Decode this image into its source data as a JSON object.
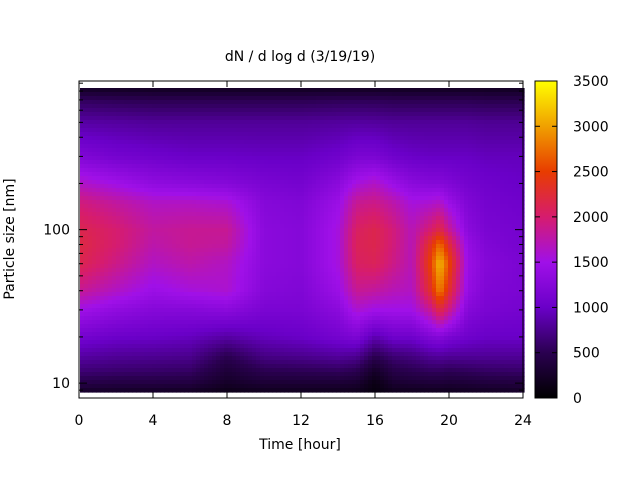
{
  "chart_data": {
    "type": "heatmap",
    "title": "dN / d log d (3/19/19)",
    "xlabel": "Time [hour]",
    "ylabel": "Particle size [nm]",
    "xlim": [
      0,
      24
    ],
    "ylim_nm": [
      8,
      930
    ],
    "y_scale": "log",
    "x_ticks": [
      0,
      4,
      8,
      12,
      16,
      20,
      24
    ],
    "x_tick_labels": [
      "0",
      "4",
      "8",
      "12",
      "16",
      "20",
      "24"
    ],
    "y_ticks": [
      10,
      100
    ],
    "y_tick_labels": [
      "10",
      "100"
    ],
    "colorbar": {
      "range": [
        0,
        3500
      ],
      "ticks": [
        0,
        500,
        1000,
        1500,
        2000,
        2500,
        3000,
        3500
      ],
      "tick_labels": [
        "0",
        "500",
        "1000",
        "1500",
        "2000",
        "2500",
        "3000",
        "3500"
      ],
      "colormap": "black-purple-red-orange-yellow"
    },
    "colormap_stops": [
      "#000000",
      "#2a0050",
      "#6a00c8",
      "#a010e8",
      "#d61c6e",
      "#e83c00",
      "#f0a000",
      "#ffff00"
    ],
    "time_hour": [
      0,
      2,
      4,
      6,
      8,
      10,
      12,
      14,
      15,
      16,
      17,
      18,
      19,
      19.5,
      20,
      21,
      22,
      24
    ],
    "size_nm": [
      8.5,
      10,
      12,
      15,
      20,
      30,
      40,
      60,
      80,
      100,
      150,
      200,
      300,
      500,
      700,
      900
    ],
    "values": [
      [
        200,
        200,
        180,
        180,
        120,
        150,
        150,
        150,
        150,
        80,
        150,
        150,
        150,
        150,
        150,
        180,
        180,
        200
      ],
      [
        450,
        420,
        420,
        400,
        250,
        330,
        330,
        330,
        300,
        120,
        300,
        330,
        350,
        350,
        330,
        350,
        380,
        400
      ],
      [
        650,
        620,
        600,
        580,
        350,
        500,
        520,
        550,
        500,
        250,
        450,
        500,
        550,
        550,
        520,
        550,
        580,
        600
      ],
      [
        850,
        800,
        780,
        760,
        500,
        720,
        760,
        820,
        780,
        500,
        650,
        700,
        800,
        820,
        800,
        800,
        800,
        800
      ],
      [
        1100,
        1020,
        1000,
        960,
        850,
        950,
        1000,
        1100,
        1180,
        900,
        1050,
        1050,
        1200,
        1250,
        1150,
        1050,
        1000,
        1000
      ],
      [
        1500,
        1350,
        1250,
        1250,
        1300,
        1150,
        1150,
        1300,
        1600,
        1500,
        1500,
        1500,
        1850,
        2200,
        1900,
        1250,
        1150,
        1100
      ],
      [
        1850,
        1650,
        1450,
        1550,
        1600,
        1250,
        1200,
        1450,
        1850,
        1800,
        1700,
        1650,
        2300,
        2850,
        2300,
        1400,
        1200,
        1150
      ],
      [
        2150,
        1900,
        1650,
        1750,
        1650,
        1300,
        1250,
        1550,
        2050,
        2100,
        1900,
        1700,
        2500,
        3150,
        2550,
        1450,
        1250,
        1150
      ],
      [
        2200,
        2000,
        1750,
        1850,
        1800,
        1300,
        1250,
        1550,
        2100,
        2150,
        1950,
        1700,
        2350,
        2750,
        2250,
        1400,
        1200,
        1100
      ],
      [
        2150,
        2000,
        1800,
        1850,
        1850,
        1300,
        1250,
        1550,
        2050,
        2150,
        1950,
        1700,
        2000,
        2200,
        1850,
        1300,
        1150,
        1100
      ],
      [
        1950,
        1800,
        1650,
        1650,
        1600,
        1250,
        1200,
        1450,
        1850,
        1900,
        1750,
        1550,
        1600,
        1650,
        1450,
        1200,
        1100,
        1050
      ],
      [
        1650,
        1500,
        1350,
        1300,
        1250,
        1150,
        1100,
        1300,
        1550,
        1650,
        1450,
        1300,
        1250,
        1250,
        1200,
        1100,
        1050,
        1000
      ],
      [
        1200,
        1100,
        1050,
        1000,
        1000,
        980,
        980,
        1050,
        1150,
        1150,
        1050,
        1000,
        980,
        980,
        980,
        980,
        950,
        950
      ],
      [
        850,
        830,
        800,
        800,
        800,
        800,
        800,
        820,
        830,
        820,
        800,
        800,
        800,
        800,
        800,
        800,
        780,
        780
      ],
      [
        550,
        520,
        500,
        500,
        500,
        500,
        500,
        520,
        520,
        520,
        500,
        500,
        500,
        500,
        500,
        500,
        480,
        480
      ],
      [
        80,
        80,
        80,
        80,
        80,
        80,
        80,
        80,
        80,
        80,
        80,
        80,
        80,
        80,
        80,
        80,
        80,
        80
      ]
    ]
  }
}
